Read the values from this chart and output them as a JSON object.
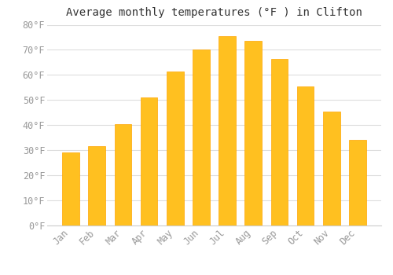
{
  "title": "Average monthly temperatures (°F ) in Clifton",
  "months": [
    "Jan",
    "Feb",
    "Mar",
    "Apr",
    "May",
    "Jun",
    "Jul",
    "Aug",
    "Sep",
    "Oct",
    "Nov",
    "Dec"
  ],
  "values": [
    29.0,
    31.5,
    40.5,
    51.0,
    61.5,
    70.0,
    75.5,
    73.5,
    66.5,
    55.5,
    45.5,
    34.0
  ],
  "bar_color": "#FFC020",
  "bar_edge_color": "#FFA500",
  "background_color": "#FFFFFF",
  "grid_color": "#DDDDDD",
  "text_color": "#999999",
  "title_color": "#333333",
  "ylim": [
    0,
    80
  ],
  "yticks": [
    0,
    10,
    20,
    30,
    40,
    50,
    60,
    70,
    80
  ],
  "title_fontsize": 10,
  "tick_fontsize": 8.5
}
